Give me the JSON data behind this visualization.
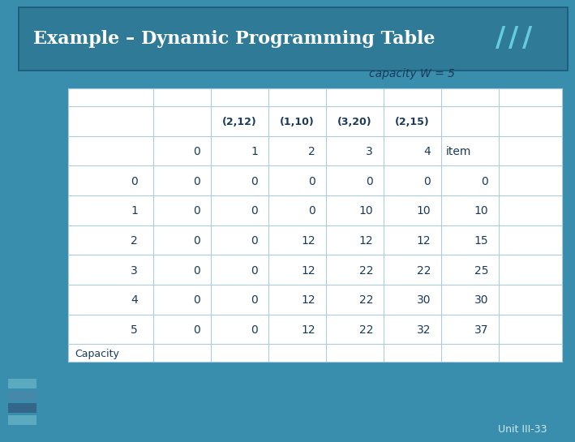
{
  "title": "Example – Dynamic Programming Table",
  "subtitle": "capacity W = 5",
  "footer": "Unit III-33",
  "bg_color": "#3A8EAD",
  "title_bar_color": "#2E7A97",
  "title_bar_edge": "#1A5A75",
  "table_bg": "#FFFFFF",
  "title_color": "#FFFFFF",
  "text_color": "#1A3A5C",
  "grid_color": "#AACCDD",
  "item_labels": [
    "(2,12)",
    "(1,10)",
    "(3,20)",
    "(2,15)"
  ],
  "capacity_rows": [
    0,
    1,
    2,
    3,
    4,
    5
  ],
  "table_data": [
    [
      0,
      0,
      0,
      0,
      0
    ],
    [
      0,
      0,
      10,
      10,
      10
    ],
    [
      0,
      12,
      12,
      12,
      15
    ],
    [
      0,
      12,
      22,
      22,
      25
    ],
    [
      0,
      12,
      22,
      30,
      30
    ],
    [
      0,
      12,
      22,
      32,
      37
    ]
  ],
  "capacity_label": "Capacity",
  "deco_slash_color": "#66CCDD",
  "deco_bar_colors": [
    "#5BAAC0",
    "#4488AA",
    "#336688",
    "#5BAAC0"
  ],
  "footer_color": "#CCE8F0"
}
